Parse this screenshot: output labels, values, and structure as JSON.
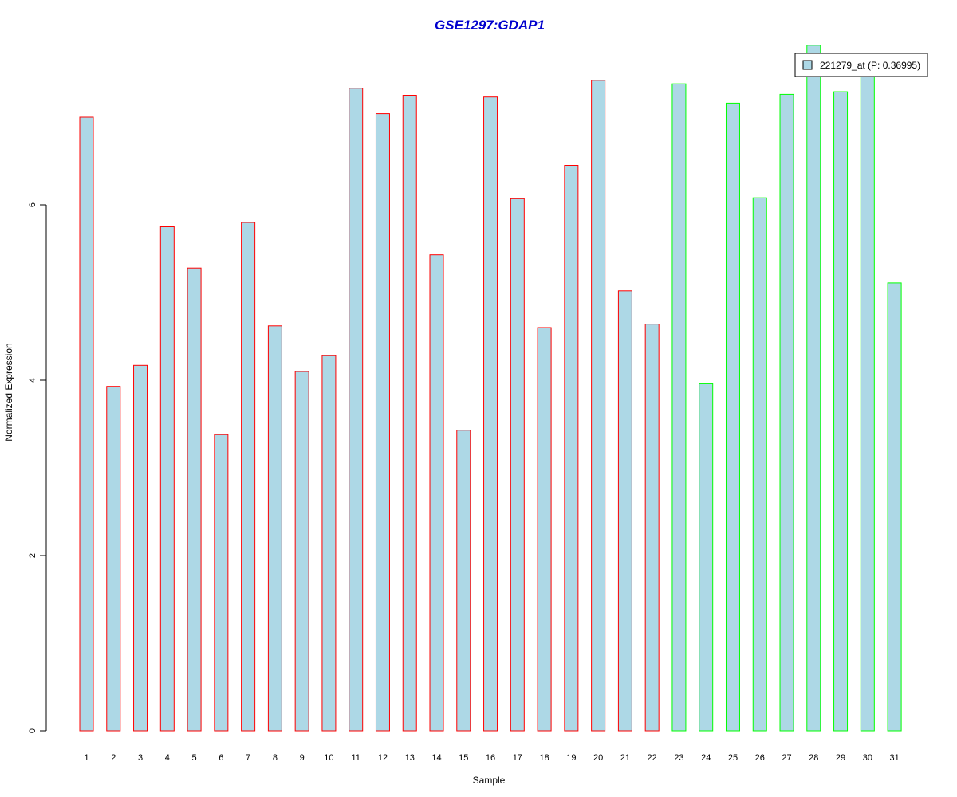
{
  "chart_data": {
    "type": "bar",
    "title": "GSE1297:GDAP1",
    "xlabel": "Sample",
    "ylabel": "Normalized Expression",
    "categories": [
      "1",
      "2",
      "3",
      "4",
      "5",
      "6",
      "7",
      "8",
      "9",
      "10",
      "11",
      "12",
      "13",
      "14",
      "15",
      "16",
      "17",
      "18",
      "19",
      "20",
      "21",
      "22",
      "23",
      "24",
      "25",
      "26",
      "27",
      "28",
      "29",
      "30",
      "31"
    ],
    "series": [
      {
        "name": "221279_at (P: 0.36995)",
        "values": [
          7.0,
          3.93,
          4.17,
          5.75,
          5.28,
          3.38,
          5.8,
          4.62,
          4.1,
          4.28,
          7.33,
          7.04,
          7.25,
          5.43,
          3.43,
          7.23,
          6.07,
          4.6,
          6.45,
          7.42,
          5.02,
          4.64,
          7.38,
          3.96,
          7.16,
          6.08,
          7.26,
          7.82,
          7.29,
          7.6,
          5.11
        ]
      }
    ],
    "group_colors": [
      "#ff0000",
      "#ff0000",
      "#ff0000",
      "#ff0000",
      "#ff0000",
      "#ff0000",
      "#ff0000",
      "#ff0000",
      "#ff0000",
      "#ff0000",
      "#ff0000",
      "#ff0000",
      "#ff0000",
      "#ff0000",
      "#ff0000",
      "#ff0000",
      "#ff0000",
      "#ff0000",
      "#ff0000",
      "#ff0000",
      "#ff0000",
      "#ff0000",
      "#00ff00",
      "#00ff00",
      "#00ff00",
      "#00ff00",
      "#00ff00",
      "#00ff00",
      "#00ff00",
      "#00ff00",
      "#00ff00"
    ],
    "yticks": [
      0,
      2,
      4,
      6
    ],
    "ylim": [
      0,
      7.82
    ],
    "bar_fill": "#add8e6",
    "title_color": "#0000cd",
    "grid": false,
    "legend_position": "top-right"
  }
}
